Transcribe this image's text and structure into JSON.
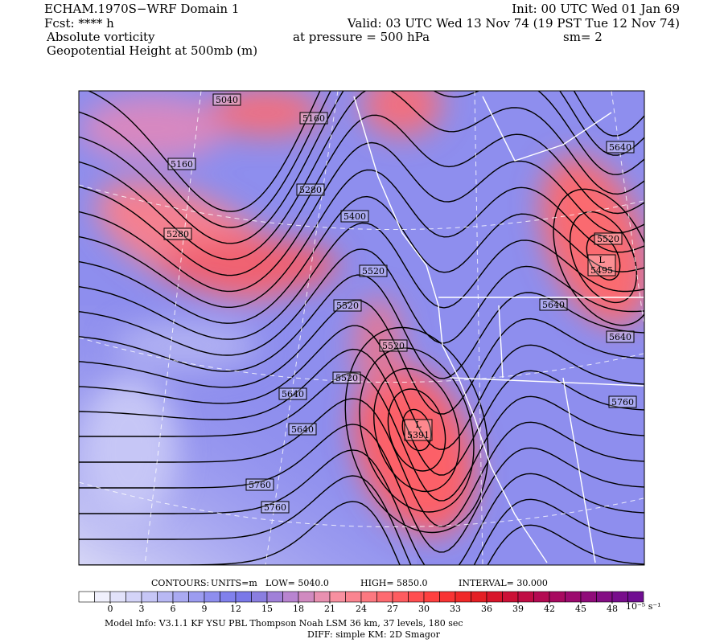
{
  "header": {
    "title": "ECHAM.1970S−WRF Domain 1",
    "init": "Init: 00 UTC Wed 01 Jan 69",
    "fcst": "Fcst: **** h",
    "valid": "Valid: 03 UTC Wed 13 Nov 74 (19 PST Tue 12 Nov 74)",
    "field1": "Absolute vorticity",
    "pressure": "at pressure =  500 hPa",
    "sm": "sm= 2",
    "field2": "Geopotential Height at 500mb (m)"
  },
  "contour_labels": [
    5040,
    5160,
    5160,
    5280,
    5280,
    5400,
    5520,
    5520,
    5520,
    5520,
    5520,
    5640,
    5640,
    5640,
    5640,
    5640,
    5760,
    5760,
    5760
  ],
  "lows": [
    {
      "symbol": "L",
      "value": 5495
    },
    {
      "symbol": "L",
      "value": 5391
    }
  ],
  "contour_info": {
    "contours": "CONTOURS:",
    "units": "UNITS=m",
    "low": "LOW=   5040.0",
    "high": "HIGH=   5850.0",
    "interval": "INTERVAL=   30.000"
  },
  "colorbar": {
    "ticks": [
      0,
      3,
      6,
      9,
      12,
      15,
      18,
      21,
      24,
      27,
      30,
      33,
      36,
      39,
      42,
      45,
      48
    ],
    "units": "10⁻⁵ s⁻¹",
    "colors": [
      "#ffffff",
      "#f0f0fc",
      "#e2e2fa",
      "#d4d4f8",
      "#c6c6f6",
      "#b8b8f4",
      "#aaaaf2",
      "#9c9cf0",
      "#8e8eee",
      "#8080ec",
      "#7a78e8",
      "#8a7ee0",
      "#a080d8",
      "#b884d0",
      "#d08ac0",
      "#e890b0",
      "#f890a0",
      "#fa8490",
      "#fc7880",
      "#fd6a70",
      "#fe5c60",
      "#ff4e50",
      "#ff4040",
      "#f83434",
      "#f02828",
      "#e41e24",
      "#d8142a",
      "#cc1036",
      "#c00c44",
      "#b40a52",
      "#a80a60",
      "#9c0a6e",
      "#900c7a",
      "#840e84",
      "#780e8c",
      "#700e92"
    ]
  },
  "footer": {
    "model": "Model Info: V3.1.1    KF      YSU PBL   Thompson     Noah LSM   36 km,    37 levels,   180 sec",
    "diff": "DIFF: simple KM: 2D Smagor"
  }
}
